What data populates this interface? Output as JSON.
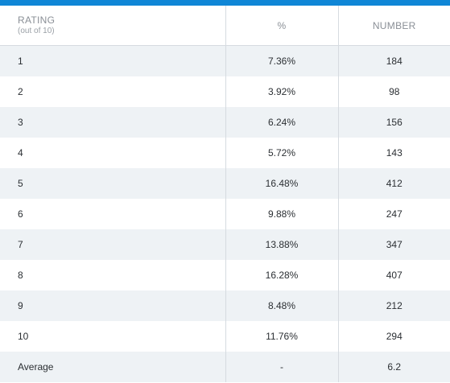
{
  "table": {
    "headers": {
      "rating": "RATING",
      "rating_sub": "(out of 10)",
      "percent": "%",
      "number": "NUMBER"
    },
    "rows": [
      {
        "rating": "1",
        "percent": "7.36%",
        "number": "184"
      },
      {
        "rating": "2",
        "percent": "3.92%",
        "number": "98"
      },
      {
        "rating": "3",
        "percent": "6.24%",
        "number": "156"
      },
      {
        "rating": "4",
        "percent": "5.72%",
        "number": "143"
      },
      {
        "rating": "5",
        "percent": "16.48%",
        "number": "412"
      },
      {
        "rating": "6",
        "percent": "9.88%",
        "number": "247"
      },
      {
        "rating": "7",
        "percent": "13.88%",
        "number": "347"
      },
      {
        "rating": "8",
        "percent": "16.28%",
        "number": "407"
      },
      {
        "rating": "9",
        "percent": "8.48%",
        "number": "212"
      },
      {
        "rating": "10",
        "percent": "11.76%",
        "number": "294"
      },
      {
        "rating": "Average",
        "percent": "-",
        "number": "6.2"
      }
    ]
  },
  "colors": {
    "accent_bar": "#0f86d6",
    "stripe": "#eef2f5"
  }
}
